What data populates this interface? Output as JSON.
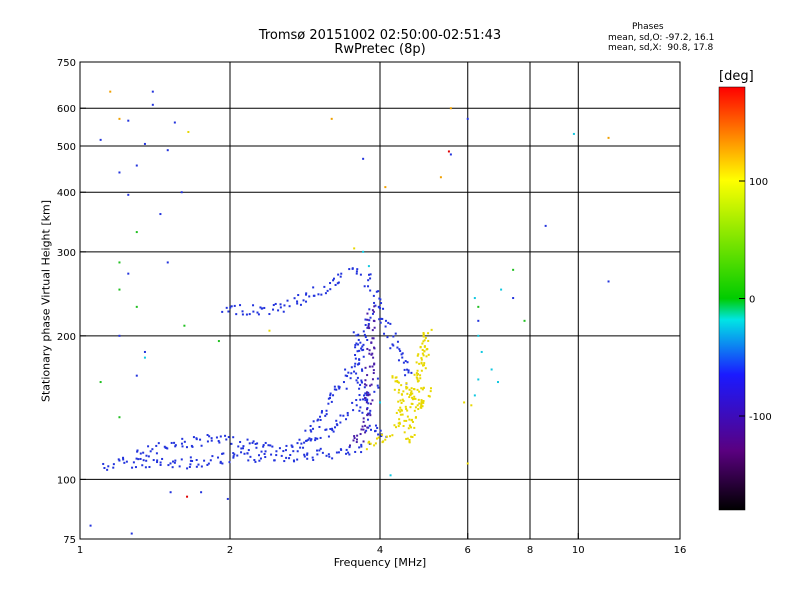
{
  "chart_data": {
    "type": "scatter",
    "title": "Tromsø 20151002 02:50:00-02:51:43",
    "subtitle": "RwPretec (8p)",
    "stats": {
      "heading": "Phases",
      "o_mode": "mean, sd,O: -97.2, 16.1",
      "x_mode": "mean, sd,X:  90.8, 17.8"
    },
    "xlabel": "Frequency [MHz]",
    "ylabel": "Stationary phase Virtual Height [km]",
    "x_scale": "log",
    "y_scale": "log",
    "xlim": [
      1,
      16
    ],
    "ylim": [
      75,
      750
    ],
    "x_ticks": [
      1,
      2,
      4,
      6,
      8,
      10,
      16
    ],
    "y_ticks": [
      75,
      100,
      200,
      300,
      400,
      500,
      600,
      750
    ],
    "x_gridlines": [
      2,
      4,
      6,
      8,
      10
    ],
    "y_gridlines": [
      100,
      200,
      300,
      400,
      500,
      600
    ],
    "grid": true,
    "colorbar": {
      "unit": "[deg]",
      "range": [
        -180,
        180
      ],
      "ticks": [
        100,
        0,
        -100
      ],
      "stops": [
        "#000000",
        "#5a0080",
        "#1a1aff",
        "#00e5e5",
        "#00cc00",
        "#ffff00",
        "#ff0000"
      ]
    },
    "phase_colors": {
      "o_mode": "#2233dd",
      "o_mode_dark": "#4a1ea8",
      "x_mode": "#e8d800",
      "cyan": "#10c8e0",
      "orange": "#f0a000",
      "red": "#e00000",
      "green": "#20c020"
    },
    "traces": [
      {
        "name": "",
        "phase": -100,
        "points": [
          [
            1.12,
            106
          ],
          [
            1.2,
            108
          ],
          [
            1.3,
            109
          ],
          [
            1.45,
            108
          ],
          [
            1.6,
            108
          ],
          [
            1.75,
            109
          ],
          [
            1.9,
            110
          ],
          [
            2.05,
            111
          ],
          [
            2.2,
            111
          ],
          [
            2.4,
            112
          ],
          [
            2.6,
            112
          ],
          [
            2.8,
            112
          ],
          [
            3.0,
            113
          ],
          [
            3.2,
            113
          ],
          [
            3.5,
            114
          ],
          [
            3.8,
            116
          ]
        ]
      },
      {
        "name": "",
        "phase": -95,
        "points": [
          [
            1.3,
            113
          ],
          [
            1.45,
            117
          ],
          [
            1.6,
            119
          ],
          [
            1.8,
            121
          ],
          [
            2.0,
            120
          ],
          [
            2.2,
            118
          ],
          [
            2.4,
            117
          ],
          [
            2.6,
            116
          ],
          [
            2.8,
            118
          ],
          [
            3.0,
            122
          ],
          [
            3.2,
            128
          ],
          [
            3.4,
            135
          ],
          [
            3.6,
            142
          ],
          [
            3.8,
            150
          ],
          [
            3.95,
            160
          ]
        ]
      },
      {
        "name": "",
        "phase": -105,
        "points": [
          [
            2.8,
            120
          ],
          [
            2.95,
            130
          ],
          [
            3.1,
            140
          ],
          [
            3.25,
            150
          ],
          [
            3.4,
            160
          ],
          [
            3.5,
            170
          ],
          [
            3.6,
            180
          ],
          [
            3.7,
            195
          ],
          [
            3.78,
            210
          ],
          [
            3.85,
            225
          ]
        ]
      },
      {
        "name": "",
        "phase": -110,
        "points": [
          [
            3.6,
            200
          ],
          [
            3.62,
            180
          ],
          [
            3.66,
            160
          ],
          [
            3.7,
            150
          ],
          [
            3.75,
            140
          ],
          [
            3.8,
            130
          ],
          [
            3.9,
            125
          ],
          [
            4.0,
            125
          ],
          [
            4.1,
            122
          ]
        ]
      },
      {
        "name": "",
        "phase": -100,
        "points": [
          [
            1.95,
            225
          ],
          [
            2.1,
            228
          ],
          [
            2.3,
            226
          ],
          [
            2.5,
            228
          ],
          [
            2.7,
            236
          ],
          [
            2.9,
            244
          ],
          [
            3.1,
            252
          ],
          [
            3.3,
            262
          ],
          [
            3.5,
            272
          ],
          [
            3.62,
            280
          ]
        ]
      },
      {
        "name": "",
        "phase": -100,
        "points": [
          [
            3.7,
            270
          ],
          [
            3.8,
            260
          ],
          [
            3.9,
            250
          ],
          [
            3.95,
            240
          ],
          [
            4.0,
            225
          ],
          [
            4.1,
            210
          ],
          [
            4.2,
            200
          ],
          [
            4.3,
            190
          ],
          [
            4.4,
            180
          ],
          [
            4.5,
            170
          ],
          [
            4.6,
            160
          ]
        ]
      },
      {
        "name": "",
        "phase": 100,
        "points": [
          [
            3.75,
            117
          ],
          [
            3.95,
            118
          ],
          [
            4.1,
            122
          ],
          [
            4.25,
            128
          ],
          [
            4.4,
            135
          ],
          [
            4.55,
            145
          ],
          [
            4.7,
            158
          ],
          [
            4.8,
            172
          ],
          [
            4.9,
            190
          ],
          [
            5.0,
            205
          ],
          [
            4.6,
            120
          ],
          [
            4.5,
            130
          ],
          [
            4.4,
            150
          ],
          [
            4.3,
            165
          ],
          [
            4.85,
            140
          ],
          [
            5.0,
            155
          ]
        ]
      },
      {
        "name": "",
        "phase": -130,
        "points": [
          [
            3.5,
            118
          ],
          [
            3.6,
            121
          ],
          [
            3.7,
            124
          ],
          [
            3.75,
            130
          ],
          [
            3.78,
            140
          ],
          [
            3.8,
            155
          ],
          [
            3.82,
            175
          ],
          [
            3.84,
            200
          ],
          [
            3.85,
            230
          ]
        ]
      }
    ],
    "scatter": [
      {
        "name": "",
        "phase": 150,
        "points": [
          [
            1.15,
            650
          ],
          [
            1.2,
            570
          ],
          [
            5.55,
            600
          ],
          [
            3.2,
            570
          ],
          [
            4.1,
            410
          ],
          [
            5.3,
            430
          ],
          [
            11.5,
            520
          ]
        ]
      },
      {
        "name": "",
        "phase": -100,
        "points": [
          [
            1.1,
            515
          ],
          [
            1.25,
            565
          ],
          [
            1.4,
            650
          ],
          [
            1.4,
            610
          ],
          [
            1.35,
            505
          ],
          [
            1.3,
            455
          ],
          [
            1.2,
            440
          ],
          [
            1.55,
            560
          ],
          [
            1.5,
            490
          ],
          [
            1.6,
            400
          ],
          [
            1.45,
            360
          ],
          [
            1.25,
            395
          ],
          [
            1.25,
            270
          ],
          [
            1.35,
            185
          ],
          [
            1.3,
            165
          ],
          [
            1.2,
            200
          ],
          [
            1.5,
            285
          ],
          [
            1.05,
            80
          ],
          [
            1.27,
            77
          ],
          [
            1.52,
            94
          ],
          [
            1.75,
            94
          ],
          [
            1.98,
            91
          ],
          [
            6.0,
            570
          ],
          [
            5.55,
            480
          ],
          [
            8.6,
            340
          ],
          [
            11.5,
            260
          ],
          [
            7.4,
            240
          ],
          [
            6.3,
            215
          ],
          [
            3.7,
            470
          ]
        ]
      },
      {
        "name": "",
        "phase": 60,
        "points": [
          [
            1.2,
            285
          ],
          [
            1.2,
            250
          ],
          [
            1.3,
            230
          ],
          [
            1.3,
            330
          ],
          [
            1.62,
            210
          ],
          [
            1.1,
            160
          ],
          [
            1.2,
            135
          ],
          [
            1.9,
            195
          ],
          [
            7.4,
            275
          ],
          [
            7.8,
            215
          ],
          [
            6.3,
            230
          ]
        ]
      },
      {
        "name": "",
        "phase": -70,
        "points": [
          [
            6.2,
            240
          ],
          [
            6.3,
            200
          ],
          [
            6.4,
            185
          ],
          [
            6.9,
            160
          ],
          [
            6.7,
            170
          ],
          [
            4.0,
            145
          ],
          [
            4.2,
            102
          ],
          [
            6.2,
            150
          ],
          [
            6.3,
            162
          ],
          [
            1.35,
            180
          ],
          [
            3.7,
            300
          ],
          [
            3.8,
            280
          ],
          [
            9.8,
            530
          ],
          [
            7.0,
            250
          ]
        ]
      },
      {
        "name": "",
        "phase": 120,
        "points": [
          [
            5.9,
            145
          ],
          [
            6.1,
            143
          ],
          [
            6.0,
            108
          ],
          [
            2.4,
            205
          ],
          [
            1.65,
            535
          ],
          [
            3.55,
            305
          ]
        ]
      },
      {
        "name": "",
        "phase": 170,
        "points": [
          [
            1.64,
            92
          ],
          [
            5.5,
            487
          ]
        ]
      }
    ]
  }
}
